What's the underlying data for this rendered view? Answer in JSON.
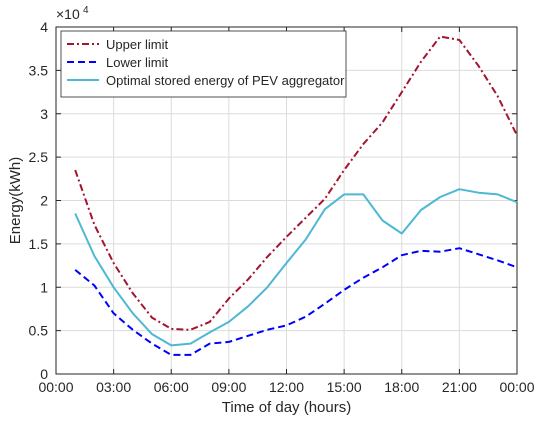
{
  "chart_data": {
    "type": "line",
    "xlabel": "Time of day (hours)",
    "ylabel": "Energy(kWh)",
    "y_exponent_label": "×10",
    "y_exponent_power": "4",
    "xlim": [
      0,
      24
    ],
    "ylim": [
      0,
      40000
    ],
    "grid": true,
    "legend_position": "top-left",
    "x_ticks": [
      {
        "value": 0,
        "label": "00:00"
      },
      {
        "value": 3,
        "label": "03:00"
      },
      {
        "value": 6,
        "label": "06:00"
      },
      {
        "value": 9,
        "label": "09:00"
      },
      {
        "value": 12,
        "label": "12:00"
      },
      {
        "value": 15,
        "label": "15:00"
      },
      {
        "value": 18,
        "label": "18:00"
      },
      {
        "value": 21,
        "label": "21:00"
      },
      {
        "value": 24,
        "label": "00:00"
      }
    ],
    "y_ticks": [
      {
        "value": 0,
        "label": "0"
      },
      {
        "value": 5000,
        "label": "0.5"
      },
      {
        "value": 10000,
        "label": "1"
      },
      {
        "value": 15000,
        "label": "1.5"
      },
      {
        "value": 20000,
        "label": "2"
      },
      {
        "value": 25000,
        "label": "2.5"
      },
      {
        "value": 30000,
        "label": "3"
      },
      {
        "value": 35000,
        "label": "3.5"
      },
      {
        "value": 40000,
        "label": "4"
      }
    ],
    "x": [
      1,
      2,
      3,
      4,
      5,
      6,
      7,
      8,
      9,
      10,
      11,
      12,
      13,
      14,
      15,
      16,
      17,
      18,
      19,
      20,
      21,
      22,
      23,
      24
    ],
    "series": [
      {
        "name": "Upper limit",
        "color": "#a2142f",
        "dash": "dashdot",
        "values": [
          23500,
          17200,
          12800,
          9300,
          6500,
          5200,
          5100,
          6000,
          8700,
          10900,
          13500,
          15800,
          18000,
          20200,
          23500,
          26500,
          29000,
          32500,
          36000,
          38900,
          38500,
          35500,
          32000,
          27500
        ]
      },
      {
        "name": "Lower limit",
        "color": "#0000ff",
        "dash": "dash",
        "values": [
          12000,
          10200,
          7000,
          5100,
          3500,
          2200,
          2200,
          3500,
          3700,
          4400,
          5100,
          5600,
          6600,
          8100,
          9700,
          11100,
          12300,
          13700,
          14200,
          14100,
          14500,
          13800,
          13100,
          12300
        ]
      },
      {
        "name": "Optimal stored energy of PEV aggregator",
        "color": "#4db8d4",
        "dash": "solid",
        "values": [
          18500,
          13600,
          10000,
          7000,
          4600,
          3300,
          3500,
          4800,
          6000,
          7800,
          10000,
          12800,
          15500,
          19000,
          20700,
          20700,
          17700,
          16200,
          18900,
          20400,
          21300,
          20900,
          20700,
          19800
        ]
      }
    ]
  }
}
